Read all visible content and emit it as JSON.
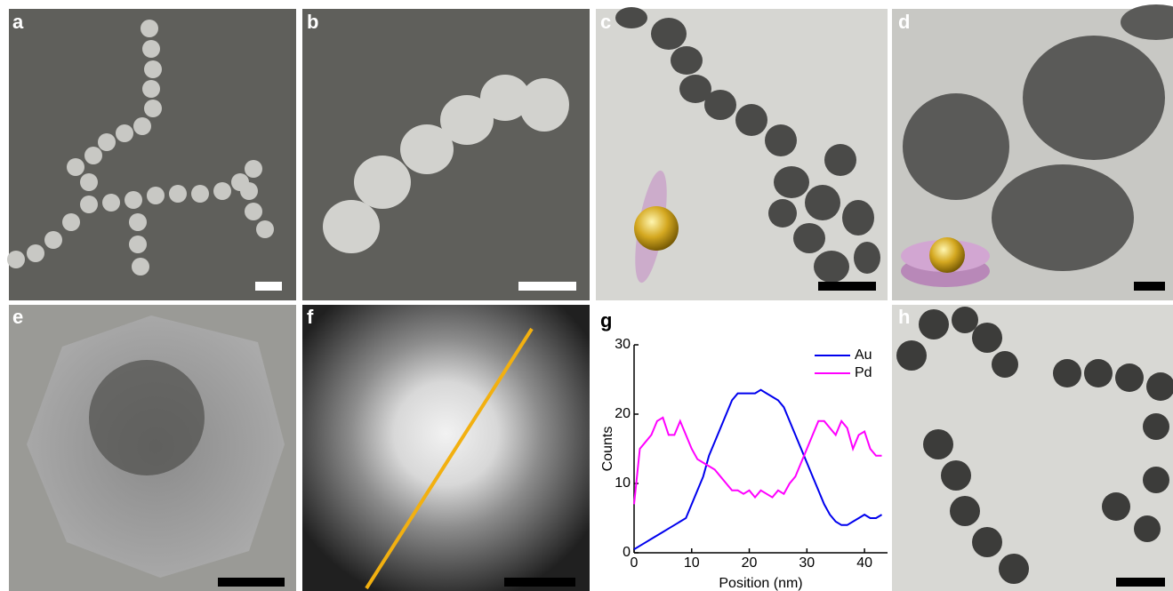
{
  "panels": [
    "a",
    "b",
    "c",
    "d",
    "e",
    "f",
    "g",
    "h"
  ],
  "chart_data": {
    "type": "line",
    "xlabel": "Position (nm)",
    "ylabel": "Counts",
    "x": [
      0,
      1,
      2,
      3,
      4,
      5,
      6,
      7,
      8,
      9,
      10,
      11,
      12,
      13,
      14,
      15,
      16,
      17,
      18,
      19,
      20,
      21,
      22,
      23,
      24,
      25,
      26,
      27,
      28,
      29,
      30,
      31,
      32,
      33,
      34,
      35,
      36,
      37,
      38,
      39,
      40,
      41,
      42,
      43
    ],
    "series": [
      {
        "name": "Au",
        "color": "#0000ee",
        "values": [
          0.5,
          1,
          1.5,
          2,
          2.5,
          3,
          3.5,
          4,
          4.5,
          5,
          7,
          9,
          11,
          14,
          16,
          18,
          20,
          22,
          23,
          23,
          23,
          23,
          23.5,
          23,
          22.5,
          22,
          21,
          19,
          17,
          15,
          13,
          11,
          9,
          7,
          5.5,
          4.5,
          4,
          4,
          4.5,
          5,
          5.5,
          5,
          5,
          5.5
        ]
      },
      {
        "name": "Pd",
        "color": "#ff00ff",
        "values": [
          7,
          15,
          16,
          17,
          19,
          19.5,
          17,
          17,
          19,
          17,
          15,
          13.5,
          13,
          12.5,
          12,
          11,
          10,
          9,
          9,
          8.5,
          9,
          8,
          9,
          8.5,
          8,
          9,
          8.5,
          10,
          11,
          13,
          15,
          17,
          19,
          19,
          18,
          17,
          19,
          18,
          15,
          17,
          17.5,
          15,
          14,
          14
        ]
      }
    ],
    "xlim": [
      0,
      44
    ],
    "ylim": [
      0,
      30
    ],
    "xticks": [
      0,
      10,
      20,
      30,
      40
    ],
    "yticks": [
      0,
      10,
      20,
      30
    ],
    "legend": "upper right"
  }
}
